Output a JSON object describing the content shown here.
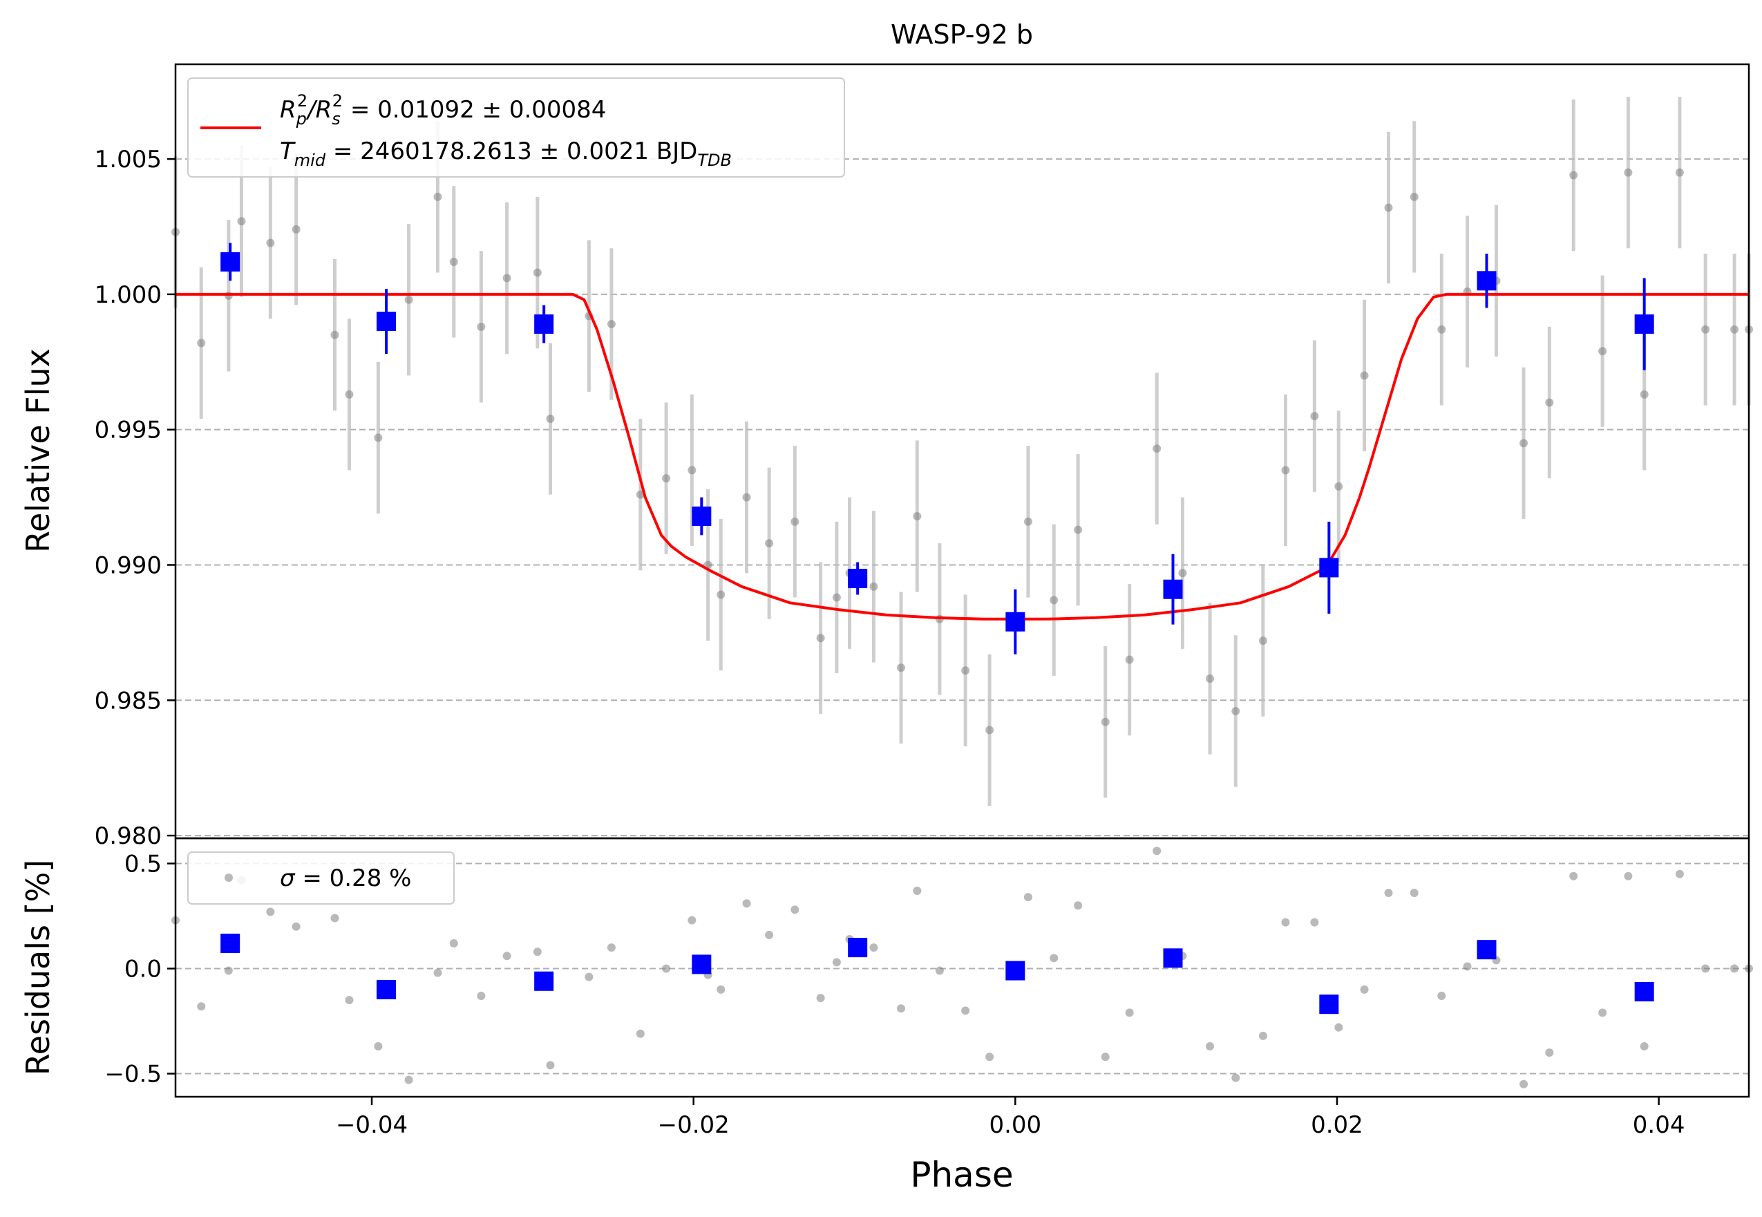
{
  "title": "WASP-92 b",
  "colors": {
    "raw": "#808080",
    "raw_err": "#bdbdbd",
    "binned": "#0000ff",
    "model": "#ff0000",
    "grid": "#b0b0b0"
  },
  "chart_data": [
    {
      "type": "scatter",
      "panel": "light-curve",
      "title": "WASP-92 b",
      "ylabel": "Relative Flux",
      "xlabel": "",
      "xlim": [
        -0.0522,
        0.0456
      ],
      "ylim": [
        0.9799,
        1.0085
      ],
      "yticks": [
        0.98,
        0.985,
        0.99,
        0.995,
        1.0,
        1.005
      ],
      "ytick_labels": [
        "0.980",
        "0.985",
        "0.990",
        "0.995",
        "1.000",
        "1.005"
      ],
      "grid": "y-dashed",
      "legend": {
        "position": "top-left",
        "entries": [
          {
            "label_parts": [
              "R",
              "p",
              "2",
              "/R",
              "s",
              "2",
              " = 0.01092 ± 0.00084"
            ]
          },
          {
            "label_parts": [
              "T",
              "mid",
              " = 2460178.2613 ± 0.0021 BJD",
              "TDB"
            ]
          }
        ]
      },
      "model": {
        "name": "transit model",
        "depth": 0.012,
        "x": [
          -0.0522,
          -0.0275,
          -0.0268,
          -0.026,
          -0.025,
          -0.024,
          -0.023,
          -0.022,
          -0.0214,
          -0.0205,
          -0.019,
          -0.017,
          -0.014,
          -0.011,
          -0.008,
          -0.005,
          -0.002,
          0.0,
          0.002,
          0.005,
          0.008,
          0.011,
          0.014,
          0.017,
          0.019,
          0.0196,
          0.0205,
          0.0214,
          0.022,
          0.023,
          0.024,
          0.025,
          0.026,
          0.0268,
          0.0275,
          0.0456
        ],
        "y": [
          1.0,
          1.0,
          0.9998,
          0.9987,
          0.9968,
          0.9947,
          0.9925,
          0.9911,
          0.9907,
          0.9903,
          0.9898,
          0.9892,
          0.9886,
          0.98835,
          0.98815,
          0.98805,
          0.988,
          0.988,
          0.988,
          0.98805,
          0.98815,
          0.98835,
          0.9886,
          0.9892,
          0.9898,
          0.9902,
          0.9911,
          0.9925,
          0.9936,
          0.9956,
          0.9976,
          0.9991,
          0.9999,
          1.0,
          1.0,
          1.0
        ]
      },
      "raw": {
        "x": [
          -0.0522,
          -0.0506,
          -0.0489,
          -0.0481,
          -0.0463,
          -0.0447,
          -0.0423,
          -0.0414,
          -0.0396,
          -0.0377,
          -0.0359,
          -0.0349,
          -0.0332,
          -0.0316,
          -0.0297,
          -0.0289,
          -0.0265,
          -0.0251,
          -0.0233,
          -0.0217,
          -0.0201,
          -0.0191,
          -0.0183,
          -0.0167,
          -0.0153,
          -0.0137,
          -0.0121,
          -0.0111,
          -0.0103,
          -0.0088,
          -0.0071,
          -0.0061,
          -0.0047,
          -0.0031,
          -0.0016,
          0.0008,
          0.0024,
          0.0039,
          0.0056,
          0.0071,
          0.0088,
          0.0104,
          0.0121,
          0.0137,
          0.0154,
          0.0168,
          0.0186,
          0.0201,
          0.0217,
          0.0232,
          0.0248,
          0.0265,
          0.0281,
          0.0299,
          0.0316,
          0.0332,
          0.0347,
          0.0365,
          0.0381,
          0.0391,
          0.0413,
          0.0429,
          0.0447,
          0.0456
        ],
        "y": [
          1.0023,
          0.9982,
          0.99995,
          1.0027,
          1.0019,
          1.0024,
          0.9985,
          0.9963,
          0.9947,
          0.9998,
          1.0036,
          1.0012,
          0.9988,
          1.0006,
          1.0008,
          0.9954,
          0.9992,
          0.9989,
          0.9926,
          0.9932,
          0.9935,
          0.99,
          0.9889,
          0.9925,
          0.9908,
          0.9916,
          0.9873,
          0.9888,
          0.9897,
          0.9892,
          0.9862,
          0.9918,
          0.988,
          0.9861,
          0.9839,
          0.9916,
          0.9887,
          0.9913,
          0.9842,
          0.9865,
          0.9943,
          0.9897,
          0.9858,
          0.9846,
          0.9872,
          0.9935,
          0.9955,
          0.9929,
          0.997,
          1.0032,
          1.0036,
          0.9987,
          1.0001,
          1.0005,
          0.9945,
          0.996,
          1.0044,
          0.9979,
          1.0045,
          0.9963,
          1.0045,
          0.9987,
          0.9987,
          0.9987
        ],
        "err": 0.0028
      },
      "binned": {
        "x": [
          -0.0488,
          -0.0391,
          -0.0293,
          -0.0195,
          -0.0098,
          0.0,
          0.0098,
          0.0195,
          0.0293,
          0.0391
        ],
        "y": [
          1.0012,
          0.999,
          0.9989,
          0.9918,
          0.9895,
          0.9879,
          0.9891,
          0.9899,
          1.0005,
          0.9989
        ],
        "err": [
          0.0007,
          0.0012,
          0.0007,
          0.0007,
          0.0006,
          0.0012,
          0.0013,
          0.0017,
          0.001,
          0.0017
        ]
      }
    },
    {
      "type": "scatter",
      "panel": "residuals",
      "ylabel": "Residuals [%]",
      "xlabel": "Phase",
      "xlim": [
        -0.0522,
        0.0456
      ],
      "ylim": [
        -0.61,
        0.62
      ],
      "yticks": [
        -0.5,
        0.0,
        0.5
      ],
      "ytick_labels": [
        "−0.5",
        "0.0",
        "0.5"
      ],
      "xticks": [
        -0.04,
        -0.02,
        0.0,
        0.02,
        0.04
      ],
      "xtick_labels": [
        "−0.04",
        "−0.02",
        "0.00",
        "0.02",
        "0.04"
      ],
      "grid": "y-dashed",
      "legend": {
        "position": "top-left",
        "label_parts": [
          "σ",
          " = 0.28 %"
        ]
      },
      "raw": {
        "x": [
          -0.0522,
          -0.0506,
          -0.0489,
          -0.0481,
          -0.0463,
          -0.0447,
          -0.0423,
          -0.0414,
          -0.0396,
          -0.0377,
          -0.0359,
          -0.0349,
          -0.0332,
          -0.0316,
          -0.0297,
          -0.0289,
          -0.0265,
          -0.0251,
          -0.0233,
          -0.0217,
          -0.0201,
          -0.0191,
          -0.0183,
          -0.0167,
          -0.0153,
          -0.0137,
          -0.0121,
          -0.0111,
          -0.0103,
          -0.0088,
          -0.0071,
          -0.0061,
          -0.0047,
          -0.0031,
          -0.0016,
          0.0008,
          0.0024,
          0.0039,
          0.0056,
          0.0071,
          0.0088,
          0.0104,
          0.0121,
          0.0137,
          0.0154,
          0.0168,
          0.0186,
          0.0201,
          0.0217,
          0.0232,
          0.0248,
          0.0265,
          0.0281,
          0.0299,
          0.0316,
          0.0332,
          0.0347,
          0.0365,
          0.0381,
          0.0391,
          0.0413,
          0.0429,
          0.0447,
          0.0456
        ],
        "y": [
          0.23,
          -0.18,
          -0.01,
          0.42,
          0.27,
          0.2,
          0.24,
          -0.15,
          -0.37,
          -0.53,
          -0.02,
          0.12,
          -0.13,
          0.06,
          0.08,
          -0.46,
          -0.04,
          0.1,
          -0.31,
          0.0,
          0.23,
          -0.03,
          -0.1,
          0.31,
          0.16,
          0.28,
          -0.14,
          0.03,
          0.14,
          0.1,
          -0.19,
          0.37,
          -0.01,
          -0.2,
          -0.42,
          0.34,
          0.05,
          0.3,
          -0.42,
          -0.21,
          0.56,
          0.06,
          -0.37,
          -0.52,
          -0.32,
          0.22,
          0.22,
          -0.28,
          -0.1,
          0.36,
          0.36,
          -0.13,
          0.01,
          0.04,
          -0.55,
          -0.4,
          0.44,
          -0.21,
          0.44,
          -0.37,
          0.45,
          0.0,
          0.0,
          0.0
        ]
      },
      "binned": {
        "x": [
          -0.0488,
          -0.0391,
          -0.0293,
          -0.0195,
          -0.0098,
          0.0,
          0.0098,
          0.0195,
          0.0293,
          0.0391
        ],
        "y": [
          0.12,
          -0.1,
          -0.06,
          0.02,
          0.1,
          -0.01,
          0.05,
          -0.17,
          0.09,
          -0.11
        ]
      }
    }
  ]
}
